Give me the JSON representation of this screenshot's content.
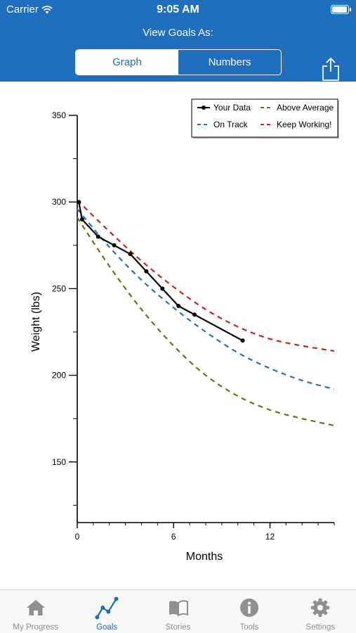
{
  "status_bar": {
    "carrier": "Carrier",
    "time": "9:05 AM"
  },
  "header": {
    "view_label": "View Goals As:",
    "segments": [
      "Graph",
      "Numbers"
    ],
    "selected": "Graph"
  },
  "colors": {
    "brand": "#1f6dbd",
    "your_data": "#000000",
    "on_track": "#2a6fb5",
    "above_average": "#5a7a10",
    "keep_working": "#cc1f1f",
    "tab_inactive": "#8e8e93"
  },
  "chart_data": {
    "type": "line",
    "title": "",
    "xlabel": "Months",
    "ylabel": "Weight (lbs)",
    "xlim": [
      0,
      16
    ],
    "ylim": [
      115,
      350
    ],
    "xticks": [
      0,
      6,
      12
    ],
    "yticks": [
      150,
      200,
      250,
      300,
      350
    ],
    "legend": {
      "placement": "top-right",
      "entries": [
        "Your Data",
        "Above Average",
        "On Track",
        "Keep Working!"
      ]
    },
    "series": [
      {
        "name": "Your Data",
        "style": "solid-markers",
        "x": [
          0.1,
          0.3,
          1.3,
          2.3,
          3.3,
          4.3,
          5.3,
          6.3,
          7.3,
          10.3
        ],
        "y": [
          300,
          290,
          280,
          275,
          270,
          260,
          250,
          240,
          235,
          220
        ]
      },
      {
        "name": "On Track",
        "style": "dashed",
        "x": [
          0,
          2,
          4,
          6,
          8,
          10,
          12,
          14,
          16
        ],
        "y": [
          296,
          274,
          255,
          239,
          225,
          213,
          204,
          197,
          192
        ]
      },
      {
        "name": "Above Average",
        "style": "dashed",
        "x": [
          0,
          2,
          4,
          6,
          8,
          10,
          12,
          14,
          16
        ],
        "y": [
          291,
          263,
          238,
          217,
          200,
          188,
          180,
          175,
          171
        ]
      },
      {
        "name": "Keep Working!",
        "style": "dashed",
        "x": [
          0,
          2,
          4,
          6,
          8,
          10,
          12,
          14,
          16
        ],
        "y": [
          301,
          283,
          266,
          251,
          238,
          228,
          221,
          217,
          214
        ]
      }
    ]
  },
  "tabbar": {
    "items": [
      {
        "label": "My Progress",
        "icon": "home-icon"
      },
      {
        "label": "Goals",
        "icon": "goals-graph-icon"
      },
      {
        "label": "Stories",
        "icon": "book-icon"
      },
      {
        "label": "Tools",
        "icon": "info-icon"
      },
      {
        "label": "Settings",
        "icon": "gear-icon"
      }
    ],
    "selected": "Goals"
  }
}
